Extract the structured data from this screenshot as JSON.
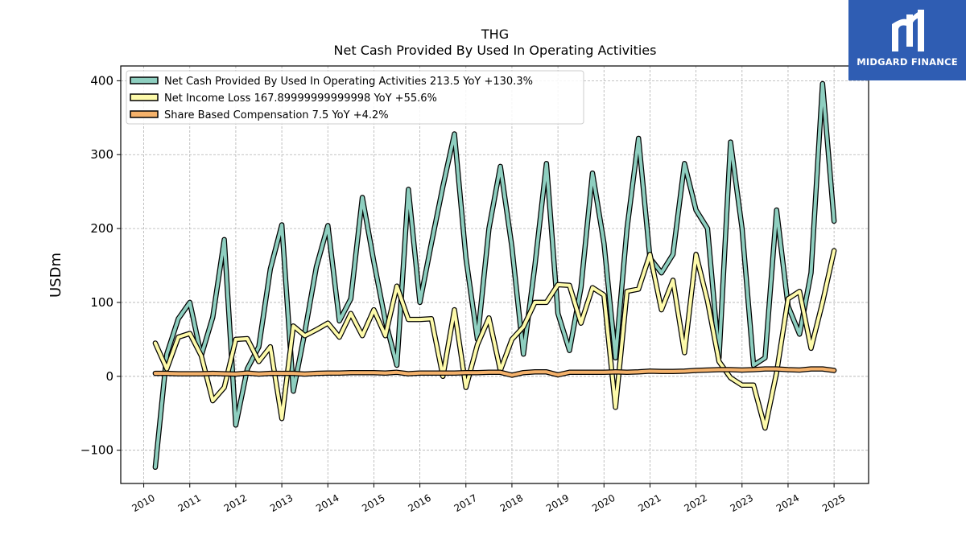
{
  "brand": {
    "name": "MIDGARD FINANCE",
    "icon": "midgard-logo-icon",
    "bg_color": "#2f5db3"
  },
  "chart_data": {
    "type": "line",
    "title": "THG",
    "subtitle": "Net Cash Provided By Used In Operating Activities",
    "xlabel": "",
    "ylabel": "USDm",
    "xlim": [
      2009.5,
      2025.75
    ],
    "ylim": [
      -145,
      420
    ],
    "yticks": [
      -100,
      0,
      100,
      200,
      300,
      400
    ],
    "ytick_labels": [
      "−100",
      "0",
      "100",
      "200",
      "300",
      "400"
    ],
    "xticks": [
      2010,
      2011,
      2012,
      2013,
      2014,
      2015,
      2016,
      2017,
      2018,
      2019,
      2020,
      2021,
      2022,
      2023,
      2024,
      2025
    ],
    "xtick_labels": [
      "2010",
      "2011",
      "2012",
      "2013",
      "2014",
      "2015",
      "2016",
      "2017",
      "2018",
      "2019",
      "2020",
      "2021",
      "2022",
      "2023",
      "2024",
      "2025"
    ],
    "grid": true,
    "legend_position": "top-left",
    "series": [
      {
        "name": "Net Cash Provided By Used In Operating Activities",
        "legend_label": "Net Cash Provided By Used In Operating Activities  213.5 YoY +130.3%",
        "color": "#8ecfc0",
        "x": [
          2010.25,
          2010.5,
          2010.75,
          2011.0,
          2011.25,
          2011.5,
          2011.75,
          2012.0,
          2012.25,
          2012.5,
          2012.75,
          2013.0,
          2013.25,
          2013.5,
          2013.75,
          2014.0,
          2014.25,
          2014.5,
          2014.75,
          2015.0,
          2015.25,
          2015.5,
          2015.75,
          2016.0,
          2016.25,
          2016.5,
          2016.75,
          2017.0,
          2017.25,
          2017.5,
          2017.75,
          2018.0,
          2018.25,
          2018.5,
          2018.75,
          2019.0,
          2019.25,
          2019.5,
          2019.75,
          2020.0,
          2020.25,
          2020.5,
          2020.75,
          2021.0,
          2021.25,
          2021.5,
          2021.75,
          2022.0,
          2022.25,
          2022.5,
          2022.75,
          2023.0,
          2023.25,
          2023.5,
          2023.75,
          2024.0,
          2024.25,
          2024.5,
          2024.75,
          2025.0
        ],
        "y": [
          -123,
          30,
          78,
          100,
          28,
          80,
          185,
          -66,
          10,
          40,
          145,
          205,
          -20,
          60,
          148,
          204,
          75,
          105,
          242,
          155,
          75,
          15,
          253,
          100,
          180,
          257,
          328,
          160,
          50,
          200,
          284,
          175,
          30,
          150,
          288,
          85,
          35,
          120,
          275,
          180,
          25,
          200,
          322,
          160,
          140,
          165,
          288,
          225,
          200,
          25,
          317,
          200,
          15,
          25,
          225,
          95,
          57,
          140,
          396,
          210
        ]
      },
      {
        "name": "Net Income Loss",
        "legend_label": "Net Income Loss  167.89999999999998 YoY +55.6%",
        "color": "#fdfaaa",
        "x": [
          2010.25,
          2010.5,
          2010.75,
          2011.0,
          2011.25,
          2011.5,
          2011.75,
          2012.0,
          2012.25,
          2012.5,
          2012.75,
          2013.0,
          2013.25,
          2013.5,
          2013.75,
          2014.0,
          2014.25,
          2014.5,
          2014.75,
          2015.0,
          2015.25,
          2015.5,
          2015.75,
          2016.0,
          2016.25,
          2016.5,
          2016.75,
          2017.0,
          2017.25,
          2017.5,
          2017.75,
          2018.0,
          2018.25,
          2018.5,
          2018.75,
          2019.0,
          2019.25,
          2019.5,
          2019.75,
          2020.0,
          2020.25,
          2020.5,
          2020.75,
          2021.0,
          2021.25,
          2021.5,
          2021.75,
          2022.0,
          2022.25,
          2022.5,
          2022.75,
          2023.0,
          2023.25,
          2023.5,
          2023.75,
          2024.0,
          2024.25,
          2024.5,
          2024.75,
          2025.0
        ],
        "y": [
          45,
          10,
          53,
          58,
          28,
          -33,
          -15,
          50,
          51,
          20,
          40,
          -57,
          68,
          55,
          63,
          72,
          53,
          85,
          55,
          90,
          55,
          122,
          77,
          77,
          78,
          0,
          90,
          -15,
          43,
          79,
          8,
          50,
          67,
          100,
          100,
          124,
          123,
          72,
          120,
          110,
          -42,
          115,
          118,
          165,
          90,
          130,
          32,
          165,
          102,
          20,
          -2,
          -12,
          -12,
          -70,
          5,
          105,
          115,
          38,
          100,
          170
        ]
      },
      {
        "name": "Share Based Compensation",
        "legend_label": "Share Based Compensation  7.5 YoY +4.2%",
        "color": "#f5b26b",
        "x": [
          2010.25,
          2010.5,
          2010.75,
          2011.0,
          2011.25,
          2011.5,
          2011.75,
          2012.0,
          2012.25,
          2012.5,
          2012.75,
          2013.0,
          2013.25,
          2013.5,
          2013.75,
          2014.0,
          2014.25,
          2014.5,
          2014.75,
          2015.0,
          2015.25,
          2015.5,
          2015.75,
          2016.0,
          2016.25,
          2016.5,
          2016.75,
          2017.0,
          2017.25,
          2017.5,
          2017.75,
          2018.0,
          2018.25,
          2018.5,
          2018.75,
          2019.0,
          2019.25,
          2019.5,
          2019.75,
          2020.0,
          2020.25,
          2020.5,
          2020.75,
          2021.0,
          2021.25,
          2021.5,
          2021.75,
          2022.0,
          2022.25,
          2022.5,
          2022.75,
          2023.0,
          2023.25,
          2023.5,
          2023.75,
          2024.0,
          2024.25,
          2024.5,
          2024.75,
          2025.0
        ],
        "y": [
          4,
          4,
          3.5,
          3.5,
          3.5,
          4,
          3.5,
          3,
          4.5,
          3,
          4,
          4,
          4,
          3,
          4,
          4.5,
          4.5,
          5,
          5,
          5,
          4.5,
          5.5,
          3.5,
          4.5,
          4.5,
          4.5,
          4.5,
          5,
          5,
          5.5,
          5.5,
          1.5,
          5,
          6,
          6,
          2,
          5.5,
          5.5,
          5.5,
          5.5,
          6,
          5.5,
          6,
          7,
          6.5,
          6.5,
          7,
          8,
          8.5,
          9,
          9,
          8.5,
          9,
          10,
          10,
          9,
          8.5,
          10,
          10,
          8
        ]
      }
    ]
  }
}
